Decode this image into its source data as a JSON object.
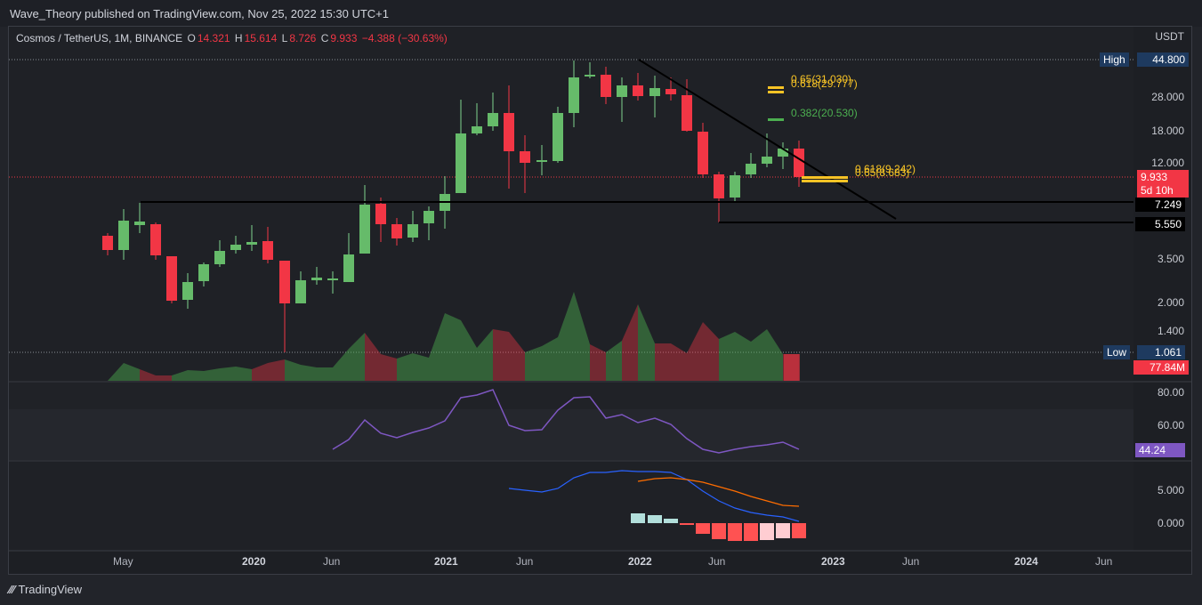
{
  "header": {
    "publish_text": "Wave_Theory published on TradingView.com, Nov 25, 2022 15:30 UTC+1"
  },
  "symbol": {
    "name": "Cosmos / TetherUS, 1M, BINANCE",
    "o_key": "O",
    "o_val": "14.321",
    "h_key": "H",
    "h_val": "15.614",
    "l_key": "L",
    "l_val": "8.726",
    "c_key": "C",
    "c_val": "9.933",
    "change": "−4.388 (−30.63%)"
  },
  "currency": "USDT",
  "price_axis": {
    "labels": [
      "28.000",
      "18.000",
      "12.000",
      "3.500",
      "2.000",
      "1.400"
    ],
    "high_label": "High",
    "high_value": "44.800",
    "low_label": "Low",
    "low_value": "1.061",
    "current_price": "9.933",
    "countdown": "5d 10h",
    "level1": "7.249",
    "level2": "5.550",
    "volume": "77.84M"
  },
  "fib_labels": {
    "fib_65_top": "0.65(31.030)",
    "fib_618_top": "0.618(29.777)",
    "fib_382": "0.382(20.530)",
    "fib_618_bottom": "0.618(9.242)",
    "fib_65_bottom": "0.65(8.683)"
  },
  "rsi_axis": {
    "labels": [
      "80.00",
      "60.00"
    ],
    "current": "44.24"
  },
  "macd_axis": {
    "labels": [
      "5.000",
      "0.000"
    ]
  },
  "time_axis": [
    {
      "label": "May",
      "year": false
    },
    {
      "label": "2020",
      "year": true
    },
    {
      "label": "Jun",
      "year": false
    },
    {
      "label": "2021",
      "year": true
    },
    {
      "label": "Jun",
      "year": false
    },
    {
      "label": "2022",
      "year": true
    },
    {
      "label": "Jun",
      "year": false
    },
    {
      "label": "2023",
      "year": true
    },
    {
      "label": "Jun",
      "year": false
    },
    {
      "label": "2024",
      "year": true
    },
    {
      "label": "Jun",
      "year": false
    }
  ],
  "footer": {
    "logo_text": "TradingView"
  },
  "colors": {
    "up": "#26a69a",
    "down": "#f23645",
    "rsi": "#7e57c2",
    "macd": "#2962ff",
    "signal": "#ff6d00",
    "fib": "#f7c325"
  }
}
